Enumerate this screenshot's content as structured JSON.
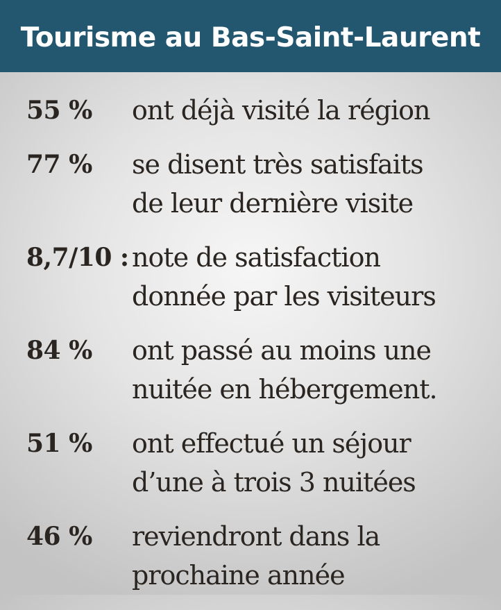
{
  "header": {
    "title": "Tourisme au Bas-Saint-Laurent"
  },
  "stats": [
    {
      "value": "55 %",
      "lines": [
        "ont déjà visité la région"
      ]
    },
    {
      "value": "77 %",
      "lines": [
        "se disent très satisfaits",
        "de leur dernière visite"
      ]
    },
    {
      "value": "8,7/10 :",
      "lines": [
        "note de satisfaction",
        "donnée par les visiteurs"
      ]
    },
    {
      "value": "84 %",
      "lines": [
        "ont passé au moins une",
        "nuitée en hébergement."
      ]
    },
    {
      "value": "51 %",
      "lines": [
        "ont effectué un séjour",
        "d’une à trois 3 nuitées"
      ]
    },
    {
      "value": "46 %",
      "lines": [
        "reviendront dans la",
        "prochaine année"
      ]
    }
  ],
  "colors": {
    "header_bg": "#23566f",
    "text": "#2a2520"
  }
}
